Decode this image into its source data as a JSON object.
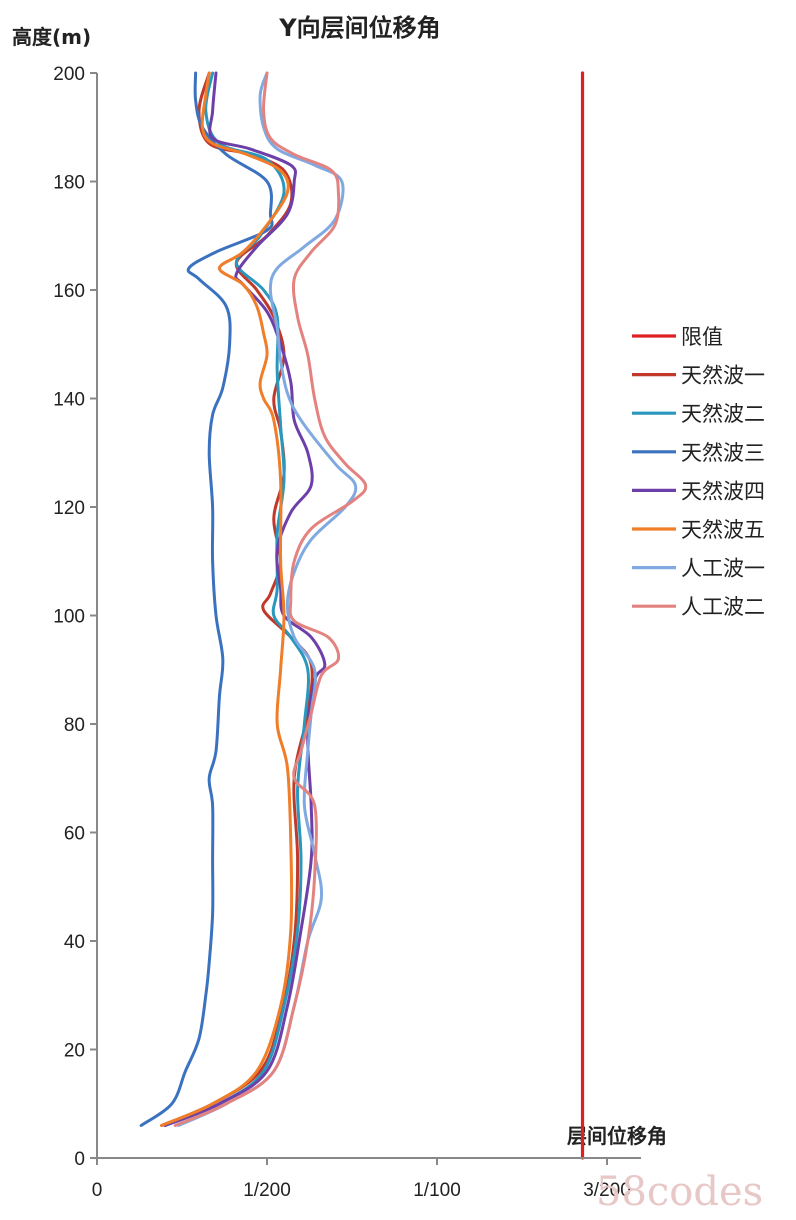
{
  "watermark": "58codes",
  "chart_data": {
    "type": "line",
    "title": "Y向层间位移角",
    "ylabel": "高度(m)",
    "xlabel": "层间位移角",
    "xlim": [
      0,
      0.016
    ],
    "ylim": [
      0,
      200
    ],
    "x_ticks": [
      0,
      0.005,
      0.01,
      0.015
    ],
    "x_tick_labels": [
      "0",
      "1/200",
      "1/100",
      "3/200"
    ],
    "y_ticks": [
      0,
      20,
      40,
      60,
      80,
      100,
      120,
      140,
      160,
      180,
      200
    ],
    "legend_position": "right",
    "grid": false,
    "series": [
      {
        "name": "限值",
        "color": "#e02020",
        "width": 3.2,
        "points": [
          [
            0.01428,
            0
          ],
          [
            0.01428,
            200
          ]
        ]
      },
      {
        "name": "天然波一",
        "color": "#c0392b",
        "width": 3,
        "points": [
          [
            0.0019,
            6
          ],
          [
            0.0034,
            10
          ],
          [
            0.0048,
            16
          ],
          [
            0.0054,
            26
          ],
          [
            0.0058,
            40
          ],
          [
            0.0059,
            55
          ],
          [
            0.0058,
            70
          ],
          [
            0.0062,
            82
          ],
          [
            0.0063,
            91
          ],
          [
            0.0057,
            96
          ],
          [
            0.0049,
            101
          ],
          [
            0.0051,
            104
          ],
          [
            0.0054,
            110
          ],
          [
            0.0052,
            118
          ],
          [
            0.0055,
            126
          ],
          [
            0.0054,
            134
          ],
          [
            0.0052,
            140
          ],
          [
            0.0055,
            148
          ],
          [
            0.0052,
            155
          ],
          [
            0.0047,
            160
          ],
          [
            0.0041,
            165
          ],
          [
            0.005,
            170
          ],
          [
            0.0057,
            176
          ],
          [
            0.0055,
            182
          ],
          [
            0.0045,
            185
          ],
          [
            0.0033,
            187
          ],
          [
            0.003,
            193
          ],
          [
            0.0033,
            200
          ]
        ]
      },
      {
        "name": "天然波二",
        "color": "#2a97bd",
        "width": 3,
        "points": [
          [
            0.002,
            6
          ],
          [
            0.0036,
            10
          ],
          [
            0.0049,
            16
          ],
          [
            0.0055,
            28
          ],
          [
            0.0059,
            42
          ],
          [
            0.006,
            55
          ],
          [
            0.0059,
            68
          ],
          [
            0.0061,
            80
          ],
          [
            0.0062,
            90
          ],
          [
            0.0057,
            96
          ],
          [
            0.0052,
            100
          ],
          [
            0.0053,
            105
          ],
          [
            0.0053,
            115
          ],
          [
            0.0055,
            125
          ],
          [
            0.0054,
            135
          ],
          [
            0.0053,
            145
          ],
          [
            0.0053,
            155
          ],
          [
            0.0049,
            160
          ],
          [
            0.0041,
            165
          ],
          [
            0.0048,
            170
          ],
          [
            0.0055,
            178
          ],
          [
            0.005,
            184
          ],
          [
            0.0036,
            187
          ],
          [
            0.0032,
            193
          ],
          [
            0.0034,
            200
          ]
        ]
      },
      {
        "name": "天然波三",
        "color": "#3b72c0",
        "width": 3,
        "points": [
          [
            0.0013,
            6
          ],
          [
            0.0022,
            10
          ],
          [
            0.0026,
            16
          ],
          [
            0.003,
            22
          ],
          [
            0.0032,
            30
          ],
          [
            0.0033,
            36
          ],
          [
            0.0034,
            45
          ],
          [
            0.0034,
            55
          ],
          [
            0.0034,
            65
          ],
          [
            0.0033,
            70
          ],
          [
            0.0035,
            75
          ],
          [
            0.0036,
            85
          ],
          [
            0.0037,
            92
          ],
          [
            0.0035,
            100
          ],
          [
            0.0034,
            110
          ],
          [
            0.0034,
            120
          ],
          [
            0.0033,
            130
          ],
          [
            0.0034,
            137
          ],
          [
            0.0037,
            142
          ],
          [
            0.0039,
            150
          ],
          [
            0.0038,
            157
          ],
          [
            0.003,
            162
          ],
          [
            0.0027,
            164
          ],
          [
            0.0035,
            167
          ],
          [
            0.005,
            171
          ],
          [
            0.0051,
            174
          ],
          [
            0.005,
            180
          ],
          [
            0.0038,
            185
          ],
          [
            0.0031,
            190
          ],
          [
            0.0029,
            195
          ],
          [
            0.0029,
            200
          ]
        ]
      },
      {
        "name": "天然波四",
        "color": "#6d3fa8",
        "width": 3,
        "points": [
          [
            0.002,
            6
          ],
          [
            0.0036,
            10
          ],
          [
            0.005,
            16
          ],
          [
            0.0056,
            28
          ],
          [
            0.006,
            42
          ],
          [
            0.0063,
            55
          ],
          [
            0.0063,
            65
          ],
          [
            0.0062,
            78
          ],
          [
            0.0064,
            88
          ],
          [
            0.0067,
            91
          ],
          [
            0.0063,
            96
          ],
          [
            0.0055,
            100
          ],
          [
            0.0054,
            105
          ],
          [
            0.0053,
            112
          ],
          [
            0.0057,
            119
          ],
          [
            0.0063,
            124
          ],
          [
            0.0062,
            130
          ],
          [
            0.0058,
            136
          ],
          [
            0.0057,
            143
          ],
          [
            0.0054,
            150
          ],
          [
            0.005,
            156
          ],
          [
            0.0043,
            161
          ],
          [
            0.0041,
            163
          ],
          [
            0.0047,
            168
          ],
          [
            0.0056,
            174
          ],
          [
            0.0058,
            180
          ],
          [
            0.0057,
            183
          ],
          [
            0.0045,
            186
          ],
          [
            0.0034,
            188
          ],
          [
            0.0034,
            193
          ],
          [
            0.0035,
            200
          ]
        ]
      },
      {
        "name": "天然波五",
        "color": "#f07d28",
        "width": 3,
        "points": [
          [
            0.0019,
            6
          ],
          [
            0.0034,
            10
          ],
          [
            0.0047,
            16
          ],
          [
            0.0054,
            28
          ],
          [
            0.0057,
            42
          ],
          [
            0.0057,
            58
          ],
          [
            0.0056,
            72
          ],
          [
            0.0053,
            80
          ],
          [
            0.0054,
            90
          ],
          [
            0.0055,
            100
          ],
          [
            0.0054,
            110
          ],
          [
            0.0054,
            125
          ],
          [
            0.0052,
            136
          ],
          [
            0.0049,
            140
          ],
          [
            0.0048,
            143
          ],
          [
            0.005,
            148
          ],
          [
            0.0049,
            152
          ],
          [
            0.0047,
            157
          ],
          [
            0.0043,
            161
          ],
          [
            0.0036,
            164
          ],
          [
            0.0043,
            167
          ],
          [
            0.005,
            172
          ],
          [
            0.0056,
            178
          ],
          [
            0.0054,
            182
          ],
          [
            0.0044,
            185
          ],
          [
            0.0034,
            187
          ],
          [
            0.0031,
            190
          ],
          [
            0.0032,
            196
          ],
          [
            0.0033,
            200
          ]
        ]
      },
      {
        "name": "人工波一",
        "color": "#7fa9e0",
        "width": 3,
        "points": [
          [
            0.0024,
            6
          ],
          [
            0.0038,
            10
          ],
          [
            0.0052,
            16
          ],
          [
            0.0058,
            28
          ],
          [
            0.0062,
            40
          ],
          [
            0.0066,
            48
          ],
          [
            0.0064,
            56
          ],
          [
            0.0061,
            65
          ],
          [
            0.0062,
            75
          ],
          [
            0.0063,
            82
          ],
          [
            0.0064,
            90
          ],
          [
            0.0058,
            96
          ],
          [
            0.0056,
            102
          ],
          [
            0.0058,
            108
          ],
          [
            0.0063,
            114
          ],
          [
            0.0073,
            120
          ],
          [
            0.0076,
            124
          ],
          [
            0.007,
            128
          ],
          [
            0.006,
            136
          ],
          [
            0.0056,
            141
          ],
          [
            0.0054,
            147
          ],
          [
            0.0053,
            153
          ],
          [
            0.0051,
            160
          ],
          [
            0.0053,
            164
          ],
          [
            0.0061,
            168
          ],
          [
            0.007,
            173
          ],
          [
            0.0072,
            180
          ],
          [
            0.0064,
            183
          ],
          [
            0.0053,
            186
          ],
          [
            0.0049,
            190
          ],
          [
            0.0048,
            196
          ],
          [
            0.005,
            200
          ]
        ]
      },
      {
        "name": "人工波二",
        "color": "#e38380",
        "width": 3,
        "points": [
          [
            0.0023,
            6
          ],
          [
            0.0038,
            10
          ],
          [
            0.0052,
            16
          ],
          [
            0.0058,
            28
          ],
          [
            0.0062,
            40
          ],
          [
            0.0064,
            52
          ],
          [
            0.0064,
            65
          ],
          [
            0.0058,
            70
          ],
          [
            0.006,
            75
          ],
          [
            0.0063,
            82
          ],
          [
            0.0066,
            89
          ],
          [
            0.0071,
            92
          ],
          [
            0.0068,
            96
          ],
          [
            0.0058,
            99
          ],
          [
            0.0057,
            103
          ],
          [
            0.0058,
            110
          ],
          [
            0.0063,
            116
          ],
          [
            0.0075,
            121
          ],
          [
            0.0079,
            124
          ],
          [
            0.0073,
            128
          ],
          [
            0.0067,
            133
          ],
          [
            0.0064,
            140
          ],
          [
            0.0062,
            148
          ],
          [
            0.0059,
            155
          ],
          [
            0.0058,
            162
          ],
          [
            0.0063,
            167
          ],
          [
            0.007,
            172
          ],
          [
            0.0071,
            178
          ],
          [
            0.0069,
            182
          ],
          [
            0.0058,
            185
          ],
          [
            0.0051,
            188
          ],
          [
            0.0049,
            193
          ],
          [
            0.005,
            200
          ]
        ]
      }
    ]
  }
}
